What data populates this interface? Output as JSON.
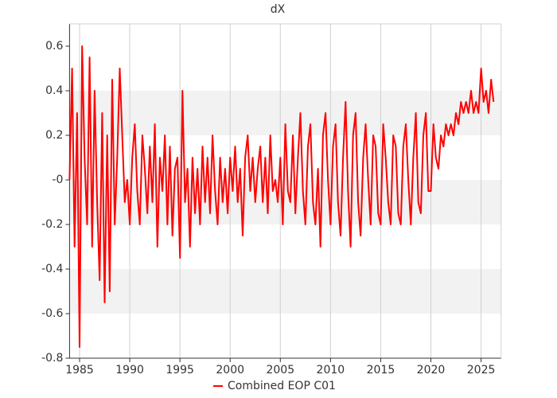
{
  "chart_data": {
    "type": "line",
    "title": "dX",
    "x": [
      1984,
      1984.25,
      1984.5,
      1984.75,
      1985,
      1985.25,
      1985.5,
      1985.75,
      1986,
      1986.25,
      1986.5,
      1986.75,
      1987,
      1987.25,
      1987.5,
      1987.75,
      1988,
      1988.25,
      1988.5,
      1988.75,
      1989,
      1989.25,
      1989.5,
      1989.75,
      1990,
      1990.25,
      1990.5,
      1990.75,
      1991,
      1991.25,
      1991.5,
      1991.75,
      1992,
      1992.25,
      1992.5,
      1992.75,
      1993,
      1993.25,
      1993.5,
      1993.75,
      1994,
      1994.25,
      1994.5,
      1994.75,
      1995,
      1995.25,
      1995.5,
      1995.75,
      1996,
      1996.25,
      1996.5,
      1996.75,
      1997,
      1997.25,
      1997.5,
      1997.75,
      1998,
      1998.25,
      1998.5,
      1998.75,
      1999,
      1999.25,
      1999.5,
      1999.75,
      2000,
      2000.25,
      2000.5,
      2000.75,
      2001,
      2001.25,
      2001.5,
      2001.75,
      2002,
      2002.25,
      2002.5,
      2002.75,
      2003,
      2003.25,
      2003.5,
      2003.75,
      2004,
      2004.25,
      2004.5,
      2004.75,
      2005,
      2005.25,
      2005.5,
      2005.75,
      2006,
      2006.25,
      2006.5,
      2006.75,
      2007,
      2007.25,
      2007.5,
      2007.75,
      2008,
      2008.25,
      2008.5,
      2008.75,
      2009,
      2009.25,
      2009.5,
      2009.75,
      2010,
      2010.25,
      2010.5,
      2010.75,
      2011,
      2011.25,
      2011.5,
      2011.75,
      2012,
      2012.25,
      2012.5,
      2012.75,
      2013,
      2013.25,
      2013.5,
      2013.75,
      2014,
      2014.25,
      2014.5,
      2014.75,
      2015,
      2015.25,
      2015.5,
      2015.75,
      2016,
      2016.25,
      2016.5,
      2016.75,
      2017,
      2017.25,
      2017.5,
      2017.75,
      2018,
      2018.25,
      2018.5,
      2018.75,
      2019,
      2019.25,
      2019.5,
      2019.75,
      2020,
      2020.25,
      2020.5,
      2020.75,
      2021,
      2021.25,
      2021.5,
      2021.75,
      2022,
      2022.25,
      2022.5,
      2022.75,
      2023,
      2023.25,
      2023.5,
      2023.75,
      2024,
      2024.25,
      2024.5,
      2024.75,
      2025,
      2025.25,
      2025.5,
      2025.75,
      2026,
      2026.25
    ],
    "series": [
      {
        "name": "Combined EOP C01",
        "color": "#ff0000",
        "values": [
          0.0,
          0.5,
          -0.3,
          0.3,
          -0.75,
          0.6,
          0.1,
          -0.2,
          0.55,
          -0.3,
          0.4,
          -0.1,
          -0.45,
          0.3,
          -0.55,
          0.2,
          -0.5,
          0.45,
          -0.2,
          0.1,
          0.5,
          0.2,
          -0.1,
          0.0,
          -0.2,
          0.1,
          0.25,
          -0.05,
          -0.2,
          0.2,
          0.05,
          -0.15,
          0.15,
          -0.1,
          0.25,
          -0.3,
          0.1,
          -0.05,
          0.2,
          -0.2,
          0.15,
          -0.25,
          0.05,
          0.1,
          -0.35,
          0.4,
          -0.1,
          0.05,
          -0.3,
          0.1,
          -0.15,
          0.05,
          -0.2,
          0.15,
          -0.1,
          0.1,
          -0.15,
          0.2,
          -0.05,
          -0.2,
          0.1,
          -0.1,
          0.05,
          -0.15,
          0.1,
          -0.05,
          0.15,
          -0.1,
          0.05,
          -0.25,
          0.1,
          0.2,
          -0.05,
          0.1,
          -0.1,
          0.05,
          0.15,
          -0.1,
          0.1,
          -0.15,
          0.2,
          -0.05,
          0.0,
          -0.1,
          0.1,
          -0.2,
          0.25,
          -0.05,
          -0.1,
          0.2,
          -0.15,
          0.1,
          0.3,
          -0.05,
          -0.2,
          0.15,
          0.25,
          -0.1,
          -0.2,
          0.05,
          -0.3,
          0.2,
          0.3,
          0.0,
          -0.2,
          0.15,
          0.25,
          -0.1,
          -0.25,
          0.1,
          0.35,
          -0.05,
          -0.3,
          0.2,
          0.3,
          -0.1,
          -0.25,
          0.1,
          0.25,
          0.0,
          -0.2,
          0.2,
          0.15,
          -0.15,
          -0.2,
          0.25,
          0.1,
          -0.1,
          -0.2,
          0.2,
          0.15,
          -0.15,
          -0.2,
          0.15,
          0.25,
          0.0,
          -0.2,
          0.1,
          0.3,
          -0.1,
          -0.15,
          0.2,
          0.3,
          -0.05,
          -0.05,
          0.25,
          0.1,
          0.05,
          0.2,
          0.15,
          0.25,
          0.2,
          0.25,
          0.2,
          0.3,
          0.25,
          0.35,
          0.3,
          0.35,
          0.3,
          0.4,
          0.3,
          0.35,
          0.3,
          0.5,
          0.35,
          0.4,
          0.3,
          0.45,
          0.35
        ]
      }
    ],
    "xlim": [
      1984,
      2027
    ],
    "xticks": [
      1985,
      1990,
      1995,
      2000,
      2005,
      2010,
      2015,
      2020,
      2025
    ],
    "ylim": [
      -0.8,
      0.7
    ],
    "yticks": [
      -0.8,
      -0.6,
      -0.4,
      -0.2,
      {
        "value": 0,
        "label": "-0"
      },
      0.2,
      0.4,
      0.6
    ],
    "grid": true,
    "legend": "bottom"
  }
}
